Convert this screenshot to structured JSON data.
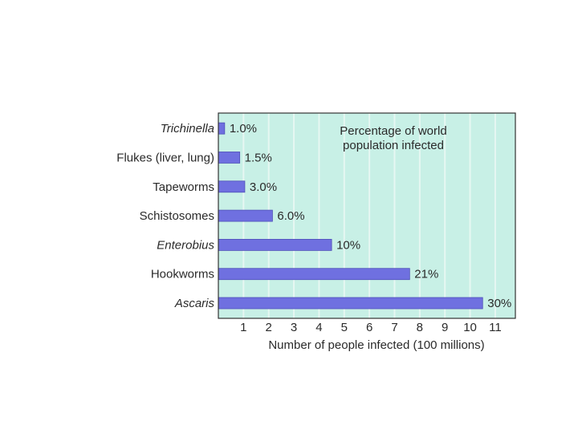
{
  "colors": {
    "plot_bg": "#c8f0e6",
    "bar": "#6f70e0",
    "bar_edge": "#4f50b8",
    "grid": "#e6f7f2",
    "frame": "#333333"
  },
  "chart_data": {
    "type": "bar",
    "orientation": "horizontal",
    "categories": [
      "Trichinella",
      "Flukes (liver, lung)",
      "Tapeworms",
      "Schistosomes",
      "Enterobius",
      "Hookworms",
      "Ascaris"
    ],
    "italic_categories": [
      "Trichinella",
      "Enterobius",
      "Ascaris"
    ],
    "values": [
      0.25,
      0.85,
      1.05,
      2.15,
      4.5,
      7.6,
      10.5
    ],
    "value_labels": [
      "1.0%",
      "1.5%",
      "3.0%",
      "6.0%",
      "10%",
      "21%",
      "30%"
    ],
    "xlabel": "Number of people infected (100 millions)",
    "ylabel": "",
    "xlim": [
      0,
      11.8
    ],
    "xticks": [
      1,
      2,
      3,
      4,
      5,
      6,
      7,
      8,
      9,
      10,
      11
    ],
    "annotation": [
      "Percentage of world",
      "population infected"
    ],
    "grid": true
  }
}
